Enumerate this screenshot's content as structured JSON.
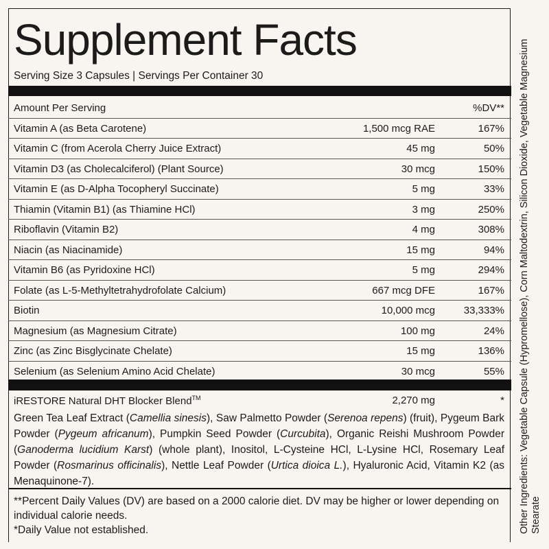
{
  "header": {
    "title": "Supplement Facts",
    "serving": "Serving Size 3 Capsules | Servings Per Container 30"
  },
  "table": {
    "columns": [
      "Amount Per Serving",
      "%DV**"
    ],
    "rows": [
      [
        "Vitamin A (as Beta Carotene)",
        "1,500 mcg RAE",
        "167%"
      ],
      [
        "Vitamin C (from Acerola Cherry Juice Extract)",
        "45 mg",
        "50%"
      ],
      [
        "Vitamin D3 (as Cholecalciferol) (Plant Source)",
        "30 mcg",
        "150%"
      ],
      [
        "Vitamin E (as D-Alpha Tocopheryl Succinate)",
        "5 mg",
        "33%"
      ],
      [
        "Thiamin (Vitamin B1) (as Thiamine HCl)",
        "3 mg",
        "250%"
      ],
      [
        "Riboflavin (Vitamin B2)",
        "4 mg",
        "308%"
      ],
      [
        "Niacin (as Niacinamide)",
        "15 mg",
        "94%"
      ],
      [
        "Vitamin B6 (as Pyridoxine HCl)",
        "5 mg",
        "294%"
      ],
      [
        "Folate (as L-5-Methyltetrahydrofolate Calcium)",
        "667 mcg DFE",
        "167%"
      ],
      [
        "Biotin",
        "10,000 mcg",
        "33,333%"
      ],
      [
        "Magnesium (as Magnesium Citrate)",
        "100 mg",
        "24%"
      ],
      [
        "Zinc (as Zinc Bisglycinate Chelate)",
        "15 mg",
        "136%"
      ],
      [
        "Selenium (as Selenium Amino Acid Chelate)",
        "30 mcg",
        "55%"
      ]
    ]
  },
  "blend": {
    "name": "iRESTORE Natural DHT Blocker Blend",
    "trademark": "TM",
    "amount": "2,270 mg",
    "dv": "*",
    "ingredients": [
      {
        "text": "Green Tea Leaf Extract (",
        "italic": false
      },
      {
        "text": "Camellia sinesis",
        "italic": true
      },
      {
        "text": "), Saw Palmetto Powder (",
        "italic": false
      },
      {
        "text": "Serenoa repens",
        "italic": true
      },
      {
        "text": ") (fruit), Pygeum Bark Powder (",
        "italic": false
      },
      {
        "text": "Pygeum africanum",
        "italic": true
      },
      {
        "text": "), Pumpkin Seed Powder (",
        "italic": false
      },
      {
        "text": "Curcubita",
        "italic": true
      },
      {
        "text": "), Organic Reishi Mushroom Powder (",
        "italic": false
      },
      {
        "text": "Ganoderma lucidium Karst",
        "italic": true
      },
      {
        "text": ") (whole plant), Inositol, L-Cysteine HCl, L-Lysine HCl, Rosemary Leaf Powder (",
        "italic": false
      },
      {
        "text": "Rosmarinus officinalis",
        "italic": true
      },
      {
        "text": "), Nettle Leaf Powder (",
        "italic": false
      },
      {
        "text": "Urtica dioica L.",
        "italic": true
      },
      {
        "text": "), Hyaluronic Acid, Vitamin K2 (as Menaquinone-7).",
        "italic": false
      }
    ]
  },
  "footnotes": [
    "**Percent Daily Values (DV) are based on a 2000 calorie diet. DV may be higher or lower depending on individual calorie needs.",
    "*Daily Value not established."
  ],
  "other_ingredients": "Other Ingredients: Vegetable Capsule (Hypromellose), Corn Maltodextrin, Silicon Dioxide, Vegetable Magnesium Stearate"
}
